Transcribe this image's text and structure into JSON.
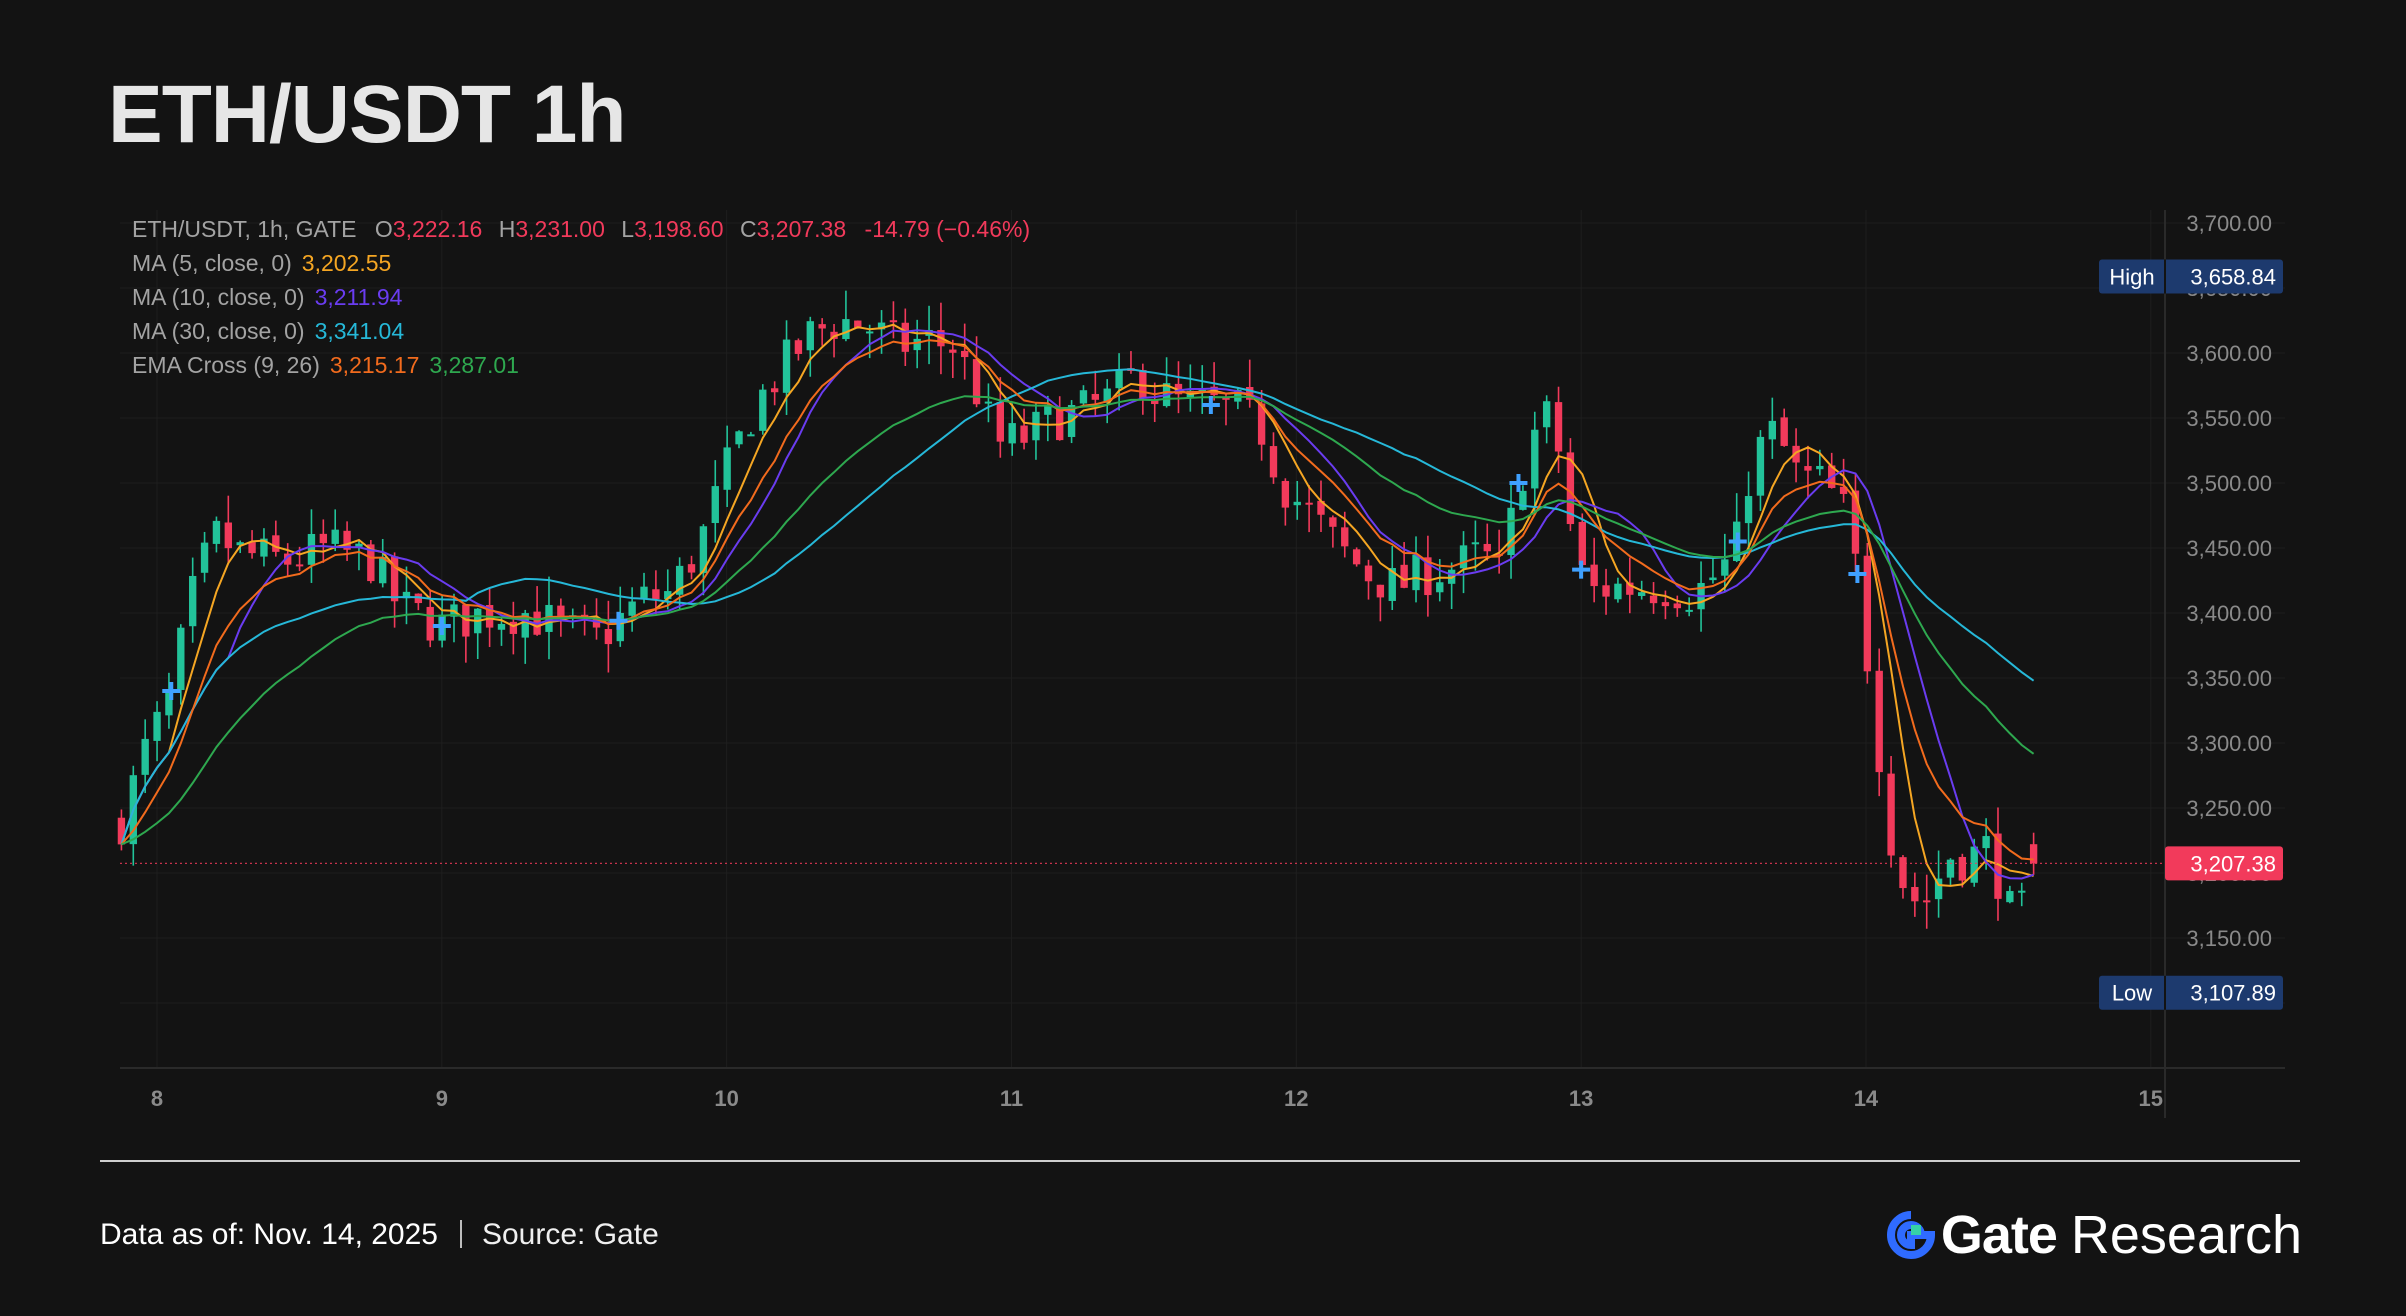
{
  "title": "ETH/USDT 1h",
  "legend": {
    "symbol": "ETH/USDT, 1h, GATE",
    "o_label": "O",
    "o_value": "3,222.16",
    "h_label": "H",
    "h_value": "3,231.00",
    "l_label": "L",
    "l_value": "3,198.60",
    "c_label": "C",
    "c_value": "3,207.38",
    "change": "-14.79 (−0.46%)",
    "ma5_label": "MA (5, close, 0)",
    "ma5_value": "3,202.55",
    "ma10_label": "MA (10, close, 0)",
    "ma10_value": "3,211.94",
    "ma30_label": "MA (30, close, 0)",
    "ma30_value": "3,341.04",
    "ema_label": "EMA Cross (9, 26)",
    "ema9_value": "3,215.17",
    "ema26_value": "3,287.01"
  },
  "footer": {
    "data_as_of": "Data as of: Nov. 14, 2025",
    "source_label": "Source:",
    "source_value": "Gate",
    "brand_gate": "Gate",
    "brand_research": "Research"
  },
  "colors": {
    "up": "#22c39a",
    "down": "#f23a5b",
    "ma5": "#f5a623",
    "ma10": "#6a3cf0",
    "ma30": "#26b8d8",
    "ema9": "#f26b1d",
    "ema26": "#2ea84f",
    "marker": "#3fa0ff",
    "badge_blue": "#1d3a6e",
    "background": "#131313"
  },
  "chart_data": {
    "type": "candlestick",
    "ylim": [
      3050,
      3710
    ],
    "yticks": [
      "3,700.00",
      "3,650.00",
      "3,600.00",
      "3,550.00",
      "3,500.00",
      "3,450.00",
      "3,400.00",
      "3,350.00",
      "3,300.00",
      "3,250.00",
      "3,200.00",
      "3,150.00",
      "3,100.00"
    ],
    "ytick_values": [
      3700,
      3650,
      3600,
      3550,
      3500,
      3450,
      3400,
      3350,
      3300,
      3250,
      3200,
      3150,
      3100
    ],
    "xticks": [
      "8",
      "9",
      "10",
      "11",
      "12",
      "13",
      "14",
      "15"
    ],
    "xtick_values": [
      8,
      9,
      10,
      11,
      12,
      13,
      14,
      15
    ],
    "xlim": [
      7.87,
      15.05
    ],
    "bar_start_x": 7.875,
    "bar_step_x": 0.0417,
    "close_anchors": [
      [
        7.875,
        3240
      ],
      [
        7.96,
        3295
      ],
      [
        8.04,
        3330
      ],
      [
        8.12,
        3410
      ],
      [
        8.2,
        3460
      ],
      [
        8.3,
        3445
      ],
      [
        8.45,
        3440
      ],
      [
        8.6,
        3450
      ],
      [
        8.75,
        3440
      ],
      [
        8.85,
        3405
      ],
      [
        9.0,
        3390
      ],
      [
        9.15,
        3400
      ],
      [
        9.3,
        3400
      ],
      [
        9.45,
        3385
      ],
      [
        9.55,
        3380
      ],
      [
        9.7,
        3410
      ],
      [
        9.8,
        3415
      ],
      [
        9.9,
        3450
      ],
      [
        10.0,
        3510
      ],
      [
        10.1,
        3560
      ],
      [
        10.2,
        3590
      ],
      [
        10.3,
        3615
      ],
      [
        10.4,
        3625
      ],
      [
        10.5,
        3620
      ],
      [
        10.6,
        3605
      ],
      [
        10.7,
        3610
      ],
      [
        10.8,
        3605
      ],
      [
        10.88,
        3570
      ],
      [
        10.95,
        3530
      ],
      [
        11.05,
        3535
      ],
      [
        11.15,
        3550
      ],
      [
        11.25,
        3555
      ],
      [
        11.35,
        3565
      ],
      [
        11.45,
        3585
      ],
      [
        11.5,
        3570
      ],
      [
        11.6,
        3560
      ],
      [
        11.7,
        3560
      ],
      [
        11.8,
        3555
      ],
      [
        11.88,
        3540
      ],
      [
        11.95,
        3500
      ],
      [
        12.05,
        3475
      ],
      [
        12.15,
        3450
      ],
      [
        12.25,
        3430
      ],
      [
        12.35,
        3420
      ],
      [
        12.45,
        3430
      ],
      [
        12.55,
        3435
      ],
      [
        12.65,
        3445
      ],
      [
        12.72,
        3430
      ],
      [
        12.78,
        3500
      ],
      [
        12.84,
        3540
      ],
      [
        12.9,
        3555
      ],
      [
        12.96,
        3470
      ],
      [
        13.02,
        3415
      ],
      [
        13.1,
        3420
      ],
      [
        13.2,
        3420
      ],
      [
        13.3,
        3420
      ],
      [
        13.4,
        3415
      ],
      [
        13.5,
        3435
      ],
      [
        13.55,
        3455
      ],
      [
        13.6,
        3520
      ],
      [
        13.68,
        3540
      ],
      [
        13.76,
        3505
      ],
      [
        13.85,
        3500
      ],
      [
        13.92,
        3480
      ],
      [
        13.97,
        3430
      ],
      [
        14.03,
        3320
      ],
      [
        14.1,
        3210
      ],
      [
        14.15,
        3185
      ],
      [
        14.2,
        3175
      ],
      [
        14.3,
        3215
      ],
      [
        14.35,
        3210
      ],
      [
        14.42,
        3220
      ],
      [
        14.46,
        3200
      ],
      [
        14.52,
        3160
      ],
      [
        14.55,
        3170
      ],
      [
        14.6,
        3207.38
      ]
    ],
    "last_close": "3,207.38",
    "high": "3,658.84",
    "low": "3,107.89",
    "high_label": "High",
    "low_label": "Low",
    "series": [
      {
        "name": "MA (5, close, 0)",
        "period": 5,
        "kind": "sma"
      },
      {
        "name": "MA (10, close, 0)",
        "period": 10,
        "kind": "sma"
      },
      {
        "name": "MA (30, close, 0)",
        "period": 30,
        "kind": "sma"
      },
      {
        "name": "EMA 9",
        "period": 9,
        "kind": "ema"
      },
      {
        "name": "EMA 26",
        "period": 26,
        "kind": "ema"
      }
    ],
    "cross_markers_x": [
      8.05,
      9.0,
      9.62,
      11.7,
      12.78,
      13.0,
      13.55,
      13.97
    ]
  }
}
